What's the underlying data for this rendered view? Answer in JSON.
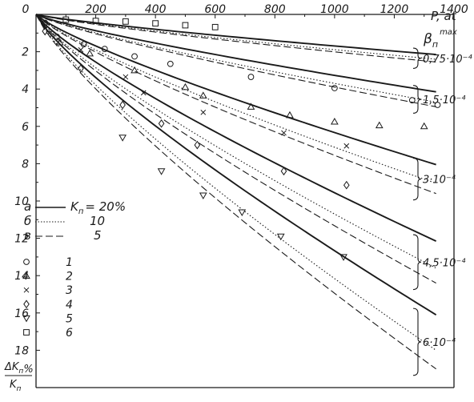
{
  "chart_data": {
    "type": "line",
    "x_axis": {
      "label": "P, at",
      "ticks": [
        "0",
        "200",
        "400",
        "600",
        "800",
        "1000",
        "1200",
        "1400"
      ],
      "range": [
        0,
        1400
      ],
      "position": "top"
    },
    "y_axis": {
      "label_numerator": "ΔK",
      "label_numerator_sub": "п",
      "label_denominator": "K",
      "label_denominator_sub": "п",
      "label_unit": "%",
      "ticks": [
        "2",
        "4",
        "6",
        "8",
        "10",
        "12",
        "14",
        "16",
        "18"
      ],
      "range": [
        0,
        20
      ],
      "inverted": true
    },
    "beta_label": "β",
    "beta_sub": "п",
    "beta_sup": "max",
    "legend_lines": [
      {
        "letter": "а",
        "style": "solid",
        "param": "K",
        "param_sub": "п",
        "value": "= 20%"
      },
      {
        "letter": "б",
        "style": "dotted",
        "value": "10"
      },
      {
        "letter": "в",
        "style": "dashed",
        "value": "5"
      }
    ],
    "legend_markers": [
      {
        "symbol": "circle",
        "label": "1"
      },
      {
        "symbol": "triangle",
        "label": "2"
      },
      {
        "symbol": "cross",
        "label": "3"
      },
      {
        "symbol": "diamond",
        "label": "4"
      },
      {
        "symbol": "triangle-down",
        "label": "5"
      },
      {
        "symbol": "square",
        "label": "6"
      }
    ],
    "groups": [
      {
        "beta_label": "0,75·10⁻⁴",
        "solid_end": 2.15,
        "dotted_end": 2.4,
        "dashed_end": 2.55
      },
      {
        "beta_label": "1,5·10⁻⁴",
        "solid_end": 4.15,
        "dotted_end": 4.7,
        "dashed_end": 4.95
      },
      {
        "beta_label": "3·10⁻⁴",
        "solid_end": 8.05,
        "dotted_end": 9.05,
        "dashed_end": 9.6
      },
      {
        "beta_label": "4,5·10⁻⁴",
        "solid_end": 12.15,
        "dotted_end": 13.6,
        "dashed_end": 14.4
      },
      {
        "beta_label": "6·10⁻⁴",
        "solid_end": 16.1,
        "dotted_end": 18.0,
        "dashed_end": 19.0
      }
    ],
    "curve_x_max": 1340,
    "curve_shape_power": 0.82,
    "points": [
      {
        "symbol": "square",
        "x": 100,
        "y": 0.28
      },
      {
        "symbol": "square",
        "x": 200,
        "y": 0.35
      },
      {
        "symbol": "square",
        "x": 300,
        "y": 0.38
      },
      {
        "symbol": "square",
        "x": 400,
        "y": 0.48
      },
      {
        "symbol": "square",
        "x": 500,
        "y": 0.58
      },
      {
        "symbol": "square",
        "x": 600,
        "y": 0.68
      },
      {
        "symbol": "circle",
        "x": 30,
        "y": 0.45
      },
      {
        "symbol": "circle",
        "x": 70,
        "y": 1.2
      },
      {
        "symbol": "circle",
        "x": 160,
        "y": 1.6
      },
      {
        "symbol": "circle",
        "x": 230,
        "y": 1.85
      },
      {
        "symbol": "circle",
        "x": 330,
        "y": 2.25
      },
      {
        "symbol": "circle",
        "x": 450,
        "y": 2.65
      },
      {
        "symbol": "circle",
        "x": 720,
        "y": 3.35
      },
      {
        "symbol": "circle",
        "x": 1000,
        "y": 3.95
      },
      {
        "symbol": "circle",
        "x": 1260,
        "y": 4.6
      },
      {
        "symbol": "circle",
        "x": 1345,
        "y": 4.85
      },
      {
        "symbol": "triangle",
        "x": 80,
        "y": 1.5
      },
      {
        "symbol": "triangle",
        "x": 180,
        "y": 2.1
      },
      {
        "symbol": "triangle",
        "x": 330,
        "y": 3.0
      },
      {
        "symbol": "triangle",
        "x": 500,
        "y": 3.9
      },
      {
        "symbol": "triangle",
        "x": 560,
        "y": 4.35
      },
      {
        "symbol": "triangle",
        "x": 720,
        "y": 4.95
      },
      {
        "symbol": "triangle",
        "x": 850,
        "y": 5.4
      },
      {
        "symbol": "triangle",
        "x": 1000,
        "y": 5.75
      },
      {
        "symbol": "triangle",
        "x": 1150,
        "y": 5.95
      },
      {
        "symbol": "triangle",
        "x": 1300,
        "y": 6.0
      },
      {
        "symbol": "cross",
        "x": 150,
        "y": 1.9
      },
      {
        "symbol": "cross",
        "x": 300,
        "y": 3.35
      },
      {
        "symbol": "cross",
        "x": 360,
        "y": 4.2
      },
      {
        "symbol": "cross",
        "x": 560,
        "y": 5.25
      },
      {
        "symbol": "cross",
        "x": 830,
        "y": 6.35
      },
      {
        "symbol": "cross",
        "x": 1040,
        "y": 7.05
      },
      {
        "symbol": "diamond",
        "x": 30,
        "y": 0.9
      },
      {
        "symbol": "diamond",
        "x": 150,
        "y": 2.9
      },
      {
        "symbol": "diamond",
        "x": 290,
        "y": 4.85
      },
      {
        "symbol": "diamond",
        "x": 420,
        "y": 5.85
      },
      {
        "symbol": "diamond",
        "x": 540,
        "y": 7.0
      },
      {
        "symbol": "diamond",
        "x": 830,
        "y": 8.4
      },
      {
        "symbol": "diamond",
        "x": 1040,
        "y": 9.15
      },
      {
        "symbol": "triangle-down",
        "x": 290,
        "y": 6.6
      },
      {
        "symbol": "triangle-down",
        "x": 420,
        "y": 8.4
      },
      {
        "symbol": "triangle-down",
        "x": 560,
        "y": 9.7
      },
      {
        "symbol": "triangle-down",
        "x": 690,
        "y": 10.6
      },
      {
        "symbol": "triangle-down",
        "x": 820,
        "y": 11.9
      },
      {
        "symbol": "triangle-down",
        "x": 1030,
        "y": 13.0
      }
    ]
  }
}
